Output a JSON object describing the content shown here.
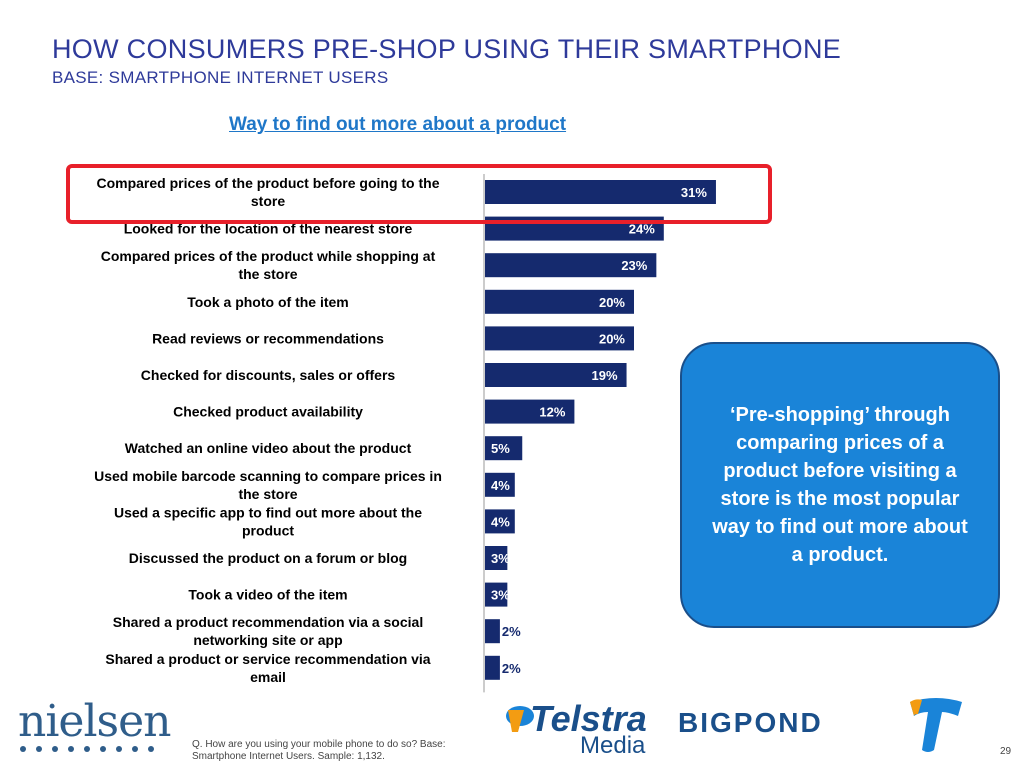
{
  "header": {
    "title": "HOW CONSUMERS PRE-SHOP USING THEIR SMARTPHONE",
    "subtitle": "BASE: SMARTPHONE INTERNET USERS"
  },
  "chart_data": {
    "type": "bar",
    "orientation": "horizontal",
    "title": "Way to find out more about a product",
    "xlabel": "",
    "ylabel": "",
    "xlim": [
      0,
      100
    ],
    "categories": [
      "Compared prices of the product before going to the store",
      "Looked for the location of the nearest store",
      "Compared prices of the product while shopping at the store",
      "Took a photo of the item",
      "Read reviews or recommendations",
      "Checked for discounts, sales or offers",
      "Checked product availability",
      "Watched an online video about the product",
      "Used mobile barcode scanning to compare prices in the store",
      "Used a specific app to find out more about the product",
      "Discussed the product on a forum or blog",
      "Took a video of the item",
      "Shared a product recommendation via a social networking site or app",
      "Shared a product or service recommendation via email"
    ],
    "values": [
      31,
      24,
      23,
      20,
      20,
      19,
      12,
      5,
      4,
      4,
      3,
      3,
      2,
      2
    ],
    "data_labels": [
      "31%",
      "24%",
      "23%",
      "20%",
      "20%",
      "19%",
      "12%",
      "5%",
      "4%",
      "4%",
      "3%",
      "3%",
      "2%",
      "2%"
    ],
    "highlighted_index": 0,
    "bar_color": "#152a6e",
    "highlight_color": "#e8202a",
    "legend": "none",
    "grid": false
  },
  "callout": {
    "text": "‘Pre-shopping’ through comparing prices of a product before visiting a store is the most popular way to find out more about a product."
  },
  "footer": {
    "footnote": "Q. How are you using your mobile phone to do so? Base: Smartphone Internet Users. Sample: 1,132.",
    "page_number": "29",
    "logos": {
      "nielsen": "nielsen",
      "telstra": "Telstra",
      "media": "Media",
      "bigpond": "BIGPOND"
    }
  }
}
